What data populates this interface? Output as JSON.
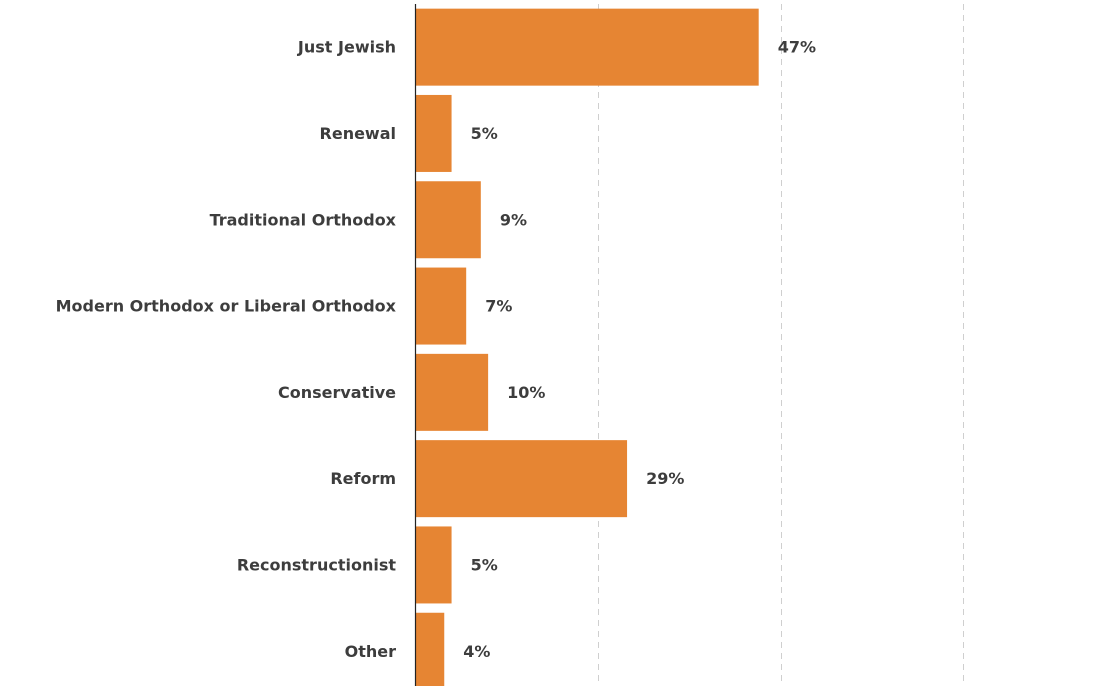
{
  "chart_data": {
    "type": "bar",
    "orientation": "horizontal",
    "categories": [
      "Just Jewish",
      "Renewal",
      "Traditional Orthodox",
      "Modern Orthodox or Liberal Orthodox",
      "Conservative",
      "Reform",
      "Reconstructionist",
      "Other"
    ],
    "values": [
      47,
      5,
      9,
      7,
      10,
      29,
      5,
      4
    ],
    "value_labels": [
      "47%",
      "5%",
      "9%",
      "7%",
      "10%",
      "29%",
      "5%",
      "4%"
    ],
    "xlim": [
      0,
      96
    ],
    "grid": true,
    "legend": "none",
    "colors": {
      "bar": "#E68533",
      "text": "#3d3d3d",
      "grid": "#cfcfcf",
      "axis": "#222222"
    }
  }
}
